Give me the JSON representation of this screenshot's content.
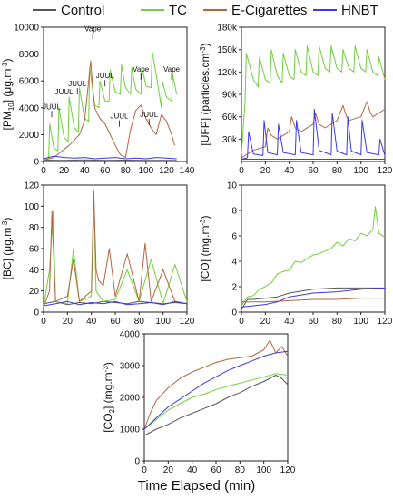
{
  "legend": [
    {
      "name": "Control",
      "color": "#555555"
    },
    {
      "name": "TC",
      "color": "#6fcf3c"
    },
    {
      "name": "E-Cigarettes",
      "color": "#b5653f"
    },
    {
      "name": "HNBT",
      "color": "#3a3adf"
    }
  ],
  "xtitle": "Time Elapsed (min)",
  "chart_data": [
    {
      "id": "pm10",
      "type": "line",
      "ylabel": "[PM10] (μg.m-3)",
      "xlim": [
        0,
        140
      ],
      "ylim": [
        0,
        10000
      ],
      "xticks": [
        "0",
        "20",
        "40",
        "60",
        "80",
        "100",
        "120",
        "140"
      ],
      "yticks": [
        "0",
        "2000",
        "4000",
        "6000",
        "8000",
        "10000"
      ],
      "annotations": [
        {
          "text": "JUUL",
          "x": 8,
          "y": 3900
        },
        {
          "text": "JUUL",
          "x": 20,
          "y": 5000
        },
        {
          "text": "JUUL",
          "x": 33,
          "y": 5600
        },
        {
          "text": "Vape",
          "x": 48,
          "y": 9700
        },
        {
          "text": "JUUL",
          "x": 60,
          "y": 6200
        },
        {
          "text": "JUUL",
          "x": 74,
          "y": 3200
        },
        {
          "text": "Vape",
          "x": 95,
          "y": 6700
        },
        {
          "text": "JUUL",
          "x": 103,
          "y": 3300
        },
        {
          "text": "Vape",
          "x": 125,
          "y": 6700
        }
      ],
      "series": [
        {
          "name": "Control",
          "x": [
            0,
            20,
            40,
            60,
            80,
            100,
            120,
            130
          ],
          "y": [
            100,
            80,
            120,
            90,
            100,
            80,
            90,
            80
          ]
        },
        {
          "name": "TC",
          "x": [
            0,
            5,
            6,
            10,
            14,
            15,
            20,
            24,
            25,
            30,
            34,
            35,
            40,
            44,
            45,
            50,
            54,
            55,
            60,
            64,
            65,
            70,
            75,
            76,
            80,
            85,
            86,
            90,
            95,
            96,
            100,
            105,
            106,
            110,
            115,
            116,
            120,
            125,
            126,
            130
          ],
          "y": [
            200,
            300,
            2800,
            1000,
            800,
            4000,
            1800,
            1500,
            4800,
            2500,
            2200,
            5500,
            3200,
            3000,
            7000,
            4200,
            4000,
            6000,
            4500,
            4500,
            6800,
            5200,
            5000,
            7200,
            5500,
            5000,
            7000,
            5400,
            5000,
            7100,
            5600,
            5500,
            8200,
            6500,
            4000,
            6000,
            4800,
            4500,
            6500,
            5000
          ]
        },
        {
          "name": "E-Cigarettes",
          "x": [
            0,
            10,
            15,
            20,
            25,
            30,
            35,
            40,
            44,
            46,
            48,
            50,
            55,
            60,
            65,
            70,
            75,
            80,
            85,
            90,
            95,
            100,
            105,
            110,
            115,
            120,
            125,
            128
          ],
          "y": [
            100,
            300,
            600,
            900,
            1200,
            1600,
            2000,
            3000,
            6000,
            7500,
            5500,
            4000,
            3200,
            2800,
            2000,
            1200,
            500,
            300,
            2400,
            3800,
            4200,
            3200,
            2500,
            2000,
            3500,
            3000,
            2000,
            1200
          ]
        },
        {
          "name": "HNBT",
          "x": [
            0,
            10,
            20,
            30,
            40,
            50,
            60,
            70,
            80,
            90,
            100,
            110,
            120,
            130
          ],
          "y": [
            200,
            400,
            300,
            250,
            300,
            200,
            250,
            300,
            200,
            250,
            200,
            300,
            250,
            200
          ]
        }
      ]
    },
    {
      "id": "ufp",
      "type": "line",
      "ylabel": "[UFP] (particles.cm-3)",
      "xlim": [
        0,
        120
      ],
      "ylim": [
        0,
        180000
      ],
      "xticks": [
        "0",
        "20",
        "40",
        "60",
        "80",
        "100",
        "120"
      ],
      "yticks": [
        "30k",
        "60k",
        "90k",
        "120k",
        "150k",
        "180k"
      ],
      "series": [
        {
          "name": "Control",
          "x": [
            0,
            20,
            40,
            60,
            80,
            100,
            120
          ],
          "y": [
            3000,
            3000,
            3000,
            3000,
            3000,
            3000,
            3000
          ]
        },
        {
          "name": "TC",
          "x": [
            0,
            3,
            4,
            10,
            14,
            15,
            20,
            24,
            25,
            30,
            34,
            35,
            40,
            44,
            45,
            50,
            54,
            55,
            60,
            64,
            65,
            70,
            74,
            75,
            80,
            84,
            85,
            90,
            94,
            95,
            100,
            104,
            105,
            110,
            114,
            115,
            120
          ],
          "y": [
            10000,
            80000,
            145000,
            110000,
            100000,
            140000,
            110000,
            105000,
            150000,
            115000,
            105000,
            145000,
            115000,
            110000,
            150000,
            120000,
            115000,
            155000,
            120000,
            115000,
            155000,
            125000,
            120000,
            155000,
            125000,
            120000,
            150000,
            125000,
            120000,
            155000,
            125000,
            120000,
            150000,
            120000,
            115000,
            140000,
            110000
          ]
        },
        {
          "name": "E-Cigarettes",
          "x": [
            0,
            10,
            20,
            22,
            25,
            30,
            40,
            42,
            45,
            50,
            60,
            62,
            65,
            70,
            80,
            85,
            88,
            90,
            100,
            105,
            108,
            110,
            120
          ],
          "y": [
            5000,
            15000,
            20000,
            45000,
            35000,
            30000,
            40000,
            60000,
            45000,
            40000,
            50000,
            65000,
            50000,
            45000,
            55000,
            75000,
            60000,
            55000,
            60000,
            80000,
            65000,
            60000,
            70000
          ]
        },
        {
          "name": "HNBT",
          "x": [
            0,
            5,
            6,
            10,
            18,
            19,
            22,
            30,
            31,
            35,
            45,
            46,
            50,
            60,
            61,
            65,
            75,
            76,
            80,
            88,
            89,
            92,
            100,
            101,
            105,
            115,
            116,
            120
          ],
          "y": [
            3000,
            5000,
            40000,
            10000,
            8000,
            55000,
            12000,
            9000,
            50000,
            12000,
            9000,
            55000,
            12000,
            9000,
            70000,
            15000,
            9000,
            65000,
            14000,
            9000,
            60000,
            14000,
            9000,
            55000,
            12000,
            9000,
            30000,
            8000
          ]
        }
      ]
    },
    {
      "id": "bc",
      "type": "line",
      "ylabel": "[BC] (μg.m-3)",
      "xlim": [
        0,
        120
      ],
      "ylim": [
        0,
        120
      ],
      "xticks": [
        "0",
        "20",
        "40",
        "60",
        "80",
        "100",
        "120"
      ],
      "yticks": [
        "0",
        "20",
        "40",
        "60",
        "80",
        "100",
        "120"
      ],
      "series": [
        {
          "name": "Control",
          "x": [
            0,
            10,
            20,
            30,
            40,
            50,
            60,
            70,
            80,
            90,
            100,
            110,
            120
          ],
          "y": [
            8,
            10,
            7,
            9,
            8,
            10,
            9,
            8,
            10,
            9,
            8,
            9,
            8
          ]
        },
        {
          "name": "TC",
          "x": [
            0,
            5,
            8,
            10,
            20,
            25,
            30,
            40,
            42,
            44,
            50,
            60,
            70,
            80,
            90,
            100,
            110,
            120
          ],
          "y": [
            5,
            40,
            95,
            10,
            8,
            60,
            10,
            15,
            100,
            20,
            10,
            12,
            40,
            10,
            50,
            8,
            45,
            10
          ]
        },
        {
          "name": "E-Cigarettes",
          "x": [
            0,
            5,
            7,
            10,
            20,
            25,
            30,
            40,
            42,
            44,
            46,
            50,
            55,
            60,
            70,
            80,
            85,
            90,
            100,
            110,
            120
          ],
          "y": [
            5,
            20,
            95,
            10,
            15,
            50,
            10,
            20,
            115,
            40,
            30,
            25,
            60,
            15,
            55,
            10,
            65,
            10,
            40,
            10,
            8
          ]
        },
        {
          "name": "HNBT",
          "x": [
            0,
            10,
            20,
            30,
            40,
            50,
            60,
            70,
            80,
            90,
            100,
            110,
            120
          ],
          "y": [
            6,
            8,
            10,
            7,
            9,
            8,
            10,
            7,
            8,
            9,
            7,
            10,
            8
          ]
        }
      ]
    },
    {
      "id": "co",
      "type": "line",
      "ylabel": "[CO] (mg.m-3)",
      "xlim": [
        0,
        120
      ],
      "ylim": [
        0,
        10
      ],
      "xticks": [
        "0",
        "20",
        "40",
        "60",
        "80",
        "100",
        "120"
      ],
      "yticks": [
        "0",
        "2",
        "4",
        "6",
        "8",
        "10"
      ],
      "series": [
        {
          "name": "Control",
          "x": [
            0,
            5,
            10,
            20,
            30,
            40,
            60,
            80,
            100,
            120
          ],
          "y": [
            0.2,
            1.0,
            1.0,
            1.1,
            1.2,
            1.5,
            1.8,
            1.9,
            1.9,
            1.9
          ]
        },
        {
          "name": "TC",
          "x": [
            0,
            5,
            10,
            15,
            20,
            25,
            30,
            35,
            40,
            45,
            50,
            55,
            60,
            65,
            70,
            75,
            80,
            85,
            90,
            95,
            100,
            105,
            110,
            112,
            115,
            120
          ],
          "y": [
            0.5,
            1.2,
            1.3,
            1.8,
            2.0,
            2.3,
            3.0,
            3.2,
            3.3,
            4.0,
            3.9,
            4.2,
            4.5,
            4.6,
            4.8,
            5.0,
            5.5,
            5.2,
            5.8,
            5.6,
            6.2,
            6.0,
            6.5,
            8.3,
            6.2,
            5.9
          ]
        },
        {
          "name": "E-Cigarettes",
          "x": [
            0,
            20,
            40,
            60,
            80,
            100,
            120
          ],
          "y": [
            0.8,
            0.8,
            0.9,
            1.0,
            1.0,
            1.1,
            1.1
          ]
        },
        {
          "name": "HNBT",
          "x": [
            0,
            20,
            30,
            40,
            60,
            80,
            100,
            120
          ],
          "y": [
            0.4,
            0.6,
            0.8,
            1.2,
            1.5,
            1.6,
            1.8,
            1.9
          ]
        }
      ]
    },
    {
      "id": "co2",
      "type": "line",
      "ylabel": "[CO2] (mg.m-3)",
      "xlim": [
        0,
        120
      ],
      "ylim": [
        0,
        4000
      ],
      "xticks": [
        "0",
        "20",
        "40",
        "60",
        "80",
        "100",
        "120"
      ],
      "yticks": [
        "0",
        "1000",
        "2000",
        "3000",
        "4000"
      ],
      "series": [
        {
          "name": "Control",
          "x": [
            0,
            10,
            20,
            30,
            40,
            50,
            60,
            70,
            80,
            90,
            100,
            110,
            115,
            120
          ],
          "y": [
            800,
            1000,
            1150,
            1350,
            1500,
            1650,
            1800,
            2000,
            2150,
            2350,
            2500,
            2700,
            2600,
            2400
          ]
        },
        {
          "name": "TC",
          "x": [
            0,
            10,
            20,
            30,
            40,
            50,
            60,
            70,
            80,
            90,
            100,
            110,
            120
          ],
          "y": [
            1000,
            1300,
            1600,
            1800,
            2000,
            2100,
            2250,
            2350,
            2450,
            2550,
            2650,
            2750,
            2700
          ]
        },
        {
          "name": "E-Cigarettes",
          "x": [
            0,
            5,
            10,
            20,
            30,
            40,
            50,
            60,
            70,
            80,
            90,
            100,
            105,
            110,
            115,
            120
          ],
          "y": [
            1000,
            1500,
            1900,
            2300,
            2600,
            2800,
            2950,
            3100,
            3200,
            3250,
            3300,
            3500,
            3800,
            3400,
            3600,
            3300
          ]
        },
        {
          "name": "HNBT",
          "x": [
            0,
            10,
            20,
            30,
            40,
            50,
            60,
            70,
            80,
            90,
            100,
            110,
            120
          ],
          "y": [
            1000,
            1350,
            1700,
            1950,
            2200,
            2450,
            2650,
            2850,
            3000,
            3150,
            3300,
            3400,
            3450
          ]
        }
      ]
    }
  ]
}
